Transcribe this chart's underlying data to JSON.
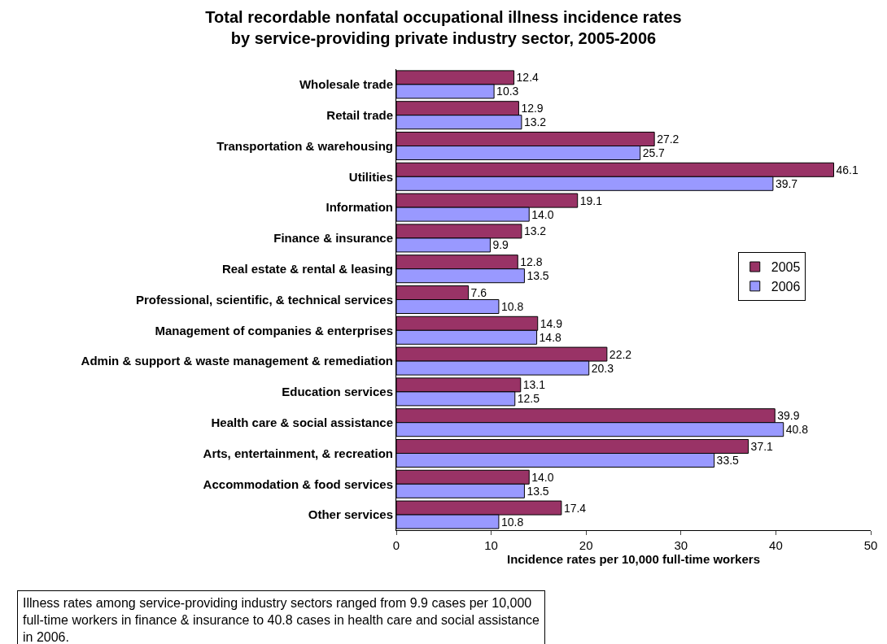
{
  "chart_data": {
    "type": "bar",
    "orientation": "horizontal",
    "title": "Total recordable nonfatal occupational illness incidence rates\nby service-providing private industry sector, 2005-2006",
    "xlabel": "Incidence rates per 10,000 full-time workers",
    "categories": [
      "Wholesale trade",
      "Retail trade",
      "Transportation & warehousing",
      "Utilities",
      "Information",
      "Finance & insurance",
      "Real estate & rental & leasing",
      "Professional, scientific, & technical services",
      "Management of companies & enterprises",
      "Admin & support & waste management & remediation",
      "Education services",
      "Health care & social assistance",
      "Arts, entertainment, & recreation",
      "Accommodation & food services",
      "Other services"
    ],
    "series": [
      {
        "name": "2005",
        "color": "#993366",
        "values": [
          12.4,
          12.9,
          27.2,
          46.1,
          19.1,
          13.2,
          12.8,
          7.6,
          14.9,
          22.2,
          13.1,
          39.9,
          37.1,
          14.0,
          17.4
        ],
        "value_labels": [
          "12.4",
          "12.9",
          "27.2",
          "46.1",
          "19.1",
          "13.2",
          "12.8",
          "7.6",
          "14.9",
          "22.2",
          "13.1",
          "39.9",
          "37.1",
          "14.0",
          "17.4"
        ]
      },
      {
        "name": "2006",
        "color": "#9999ff",
        "values": [
          10.3,
          13.2,
          25.7,
          39.7,
          14.0,
          9.9,
          13.5,
          10.8,
          14.8,
          20.3,
          12.5,
          40.8,
          33.5,
          13.5,
          10.8
        ],
        "value_labels": [
          "10.3",
          "13.2",
          "25.7",
          "39.7",
          "14.0",
          "9.9",
          "13.5",
          "10.8",
          "14.8",
          "20.3",
          "12.5",
          "40.8",
          "33.5",
          "13.5",
          "10.8"
        ]
      }
    ],
    "xlim": [
      0,
      50
    ],
    "xticks": [
      0,
      10,
      20,
      30,
      40,
      50
    ],
    "legend": "right",
    "annotations": [
      "Illness rates among service-providing industry sectors ranged from 9.9 cases per 10,000 full-time workers in finance & insurance to 40.8 cases in health care and social assistance in 2006."
    ]
  }
}
